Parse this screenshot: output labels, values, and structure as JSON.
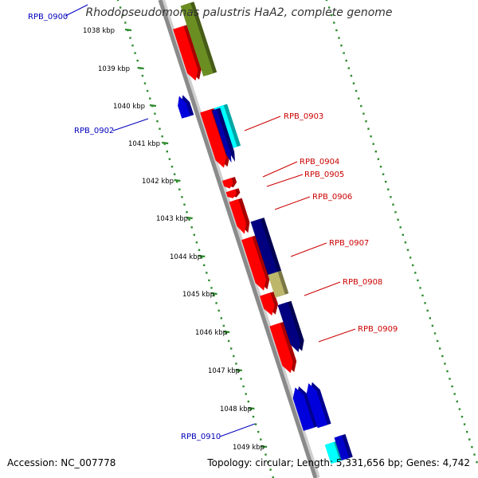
{
  "title": "Rhodopseudomonas palustris HaA2, complete genome",
  "footer": {
    "accession": "Accession: NC_007778",
    "summary": "Topology: circular; Length: 5,331,656 bp; Genes: 4,742"
  },
  "colors": {
    "backbone": "#8a8a8a",
    "ruler": "#2e8b2e",
    "label_forward": "#cc0000",
    "label_reverse": "#0000bb",
    "tick_text": "#000000"
  },
  "ticks": [
    "1038 kbp",
    "1039 kbp",
    "1040 kbp",
    "1041 kbp",
    "1042 kbp",
    "1043 kbp",
    "1044 kbp",
    "1045 kbp",
    "1046 kbp",
    "1047 kbp",
    "1048 kbp",
    "1049 kbp"
  ],
  "gene_labels": [
    {
      "text": "RPB_0900",
      "strand": "reverse"
    },
    {
      "text": "RPB_0902",
      "strand": "reverse"
    },
    {
      "text": "RPB_0903",
      "strand": "forward"
    },
    {
      "text": "RPB_0904",
      "strand": "forward"
    },
    {
      "text": "RPB_0905",
      "strand": "forward"
    },
    {
      "text": "RPB_0906",
      "strand": "forward"
    },
    {
      "text": "RPB_0907",
      "strand": "forward"
    },
    {
      "text": "RPB_0908",
      "strand": "forward"
    },
    {
      "text": "RPB_0909",
      "strand": "forward"
    },
    {
      "text": "RPB_0910",
      "strand": "reverse"
    }
  ],
  "features": [
    {
      "kind": "gene",
      "color": "#ff0000"
    },
    {
      "kind": "gene",
      "color": "#ff0000"
    },
    {
      "kind": "gene",
      "color": "#ff0000"
    },
    {
      "kind": "gene",
      "color": "#ff0000"
    },
    {
      "kind": "gene",
      "color": "#ff0000"
    },
    {
      "kind": "gene",
      "color": "#ff0000"
    },
    {
      "kind": "gene",
      "color": "#ff0000"
    },
    {
      "kind": "gene",
      "color": "#ff0000"
    },
    {
      "kind": "gene",
      "color": "#0000dd"
    },
    {
      "kind": "gene",
      "color": "#0000dd"
    },
    {
      "kind": "gene",
      "color": "#0000dd"
    },
    {
      "kind": "cds",
      "color": "#6b8e23"
    },
    {
      "kind": "cds",
      "color": "#00ffff"
    },
    {
      "kind": "cds",
      "color": "#0000aa"
    },
    {
      "kind": "cds",
      "color": "#000080"
    },
    {
      "kind": "cds",
      "color": "#bdb76b"
    },
    {
      "kind": "cds",
      "color": "#000080"
    },
    {
      "kind": "cds",
      "color": "#00ffff"
    },
    {
      "kind": "cds",
      "color": "#0000cc"
    }
  ]
}
